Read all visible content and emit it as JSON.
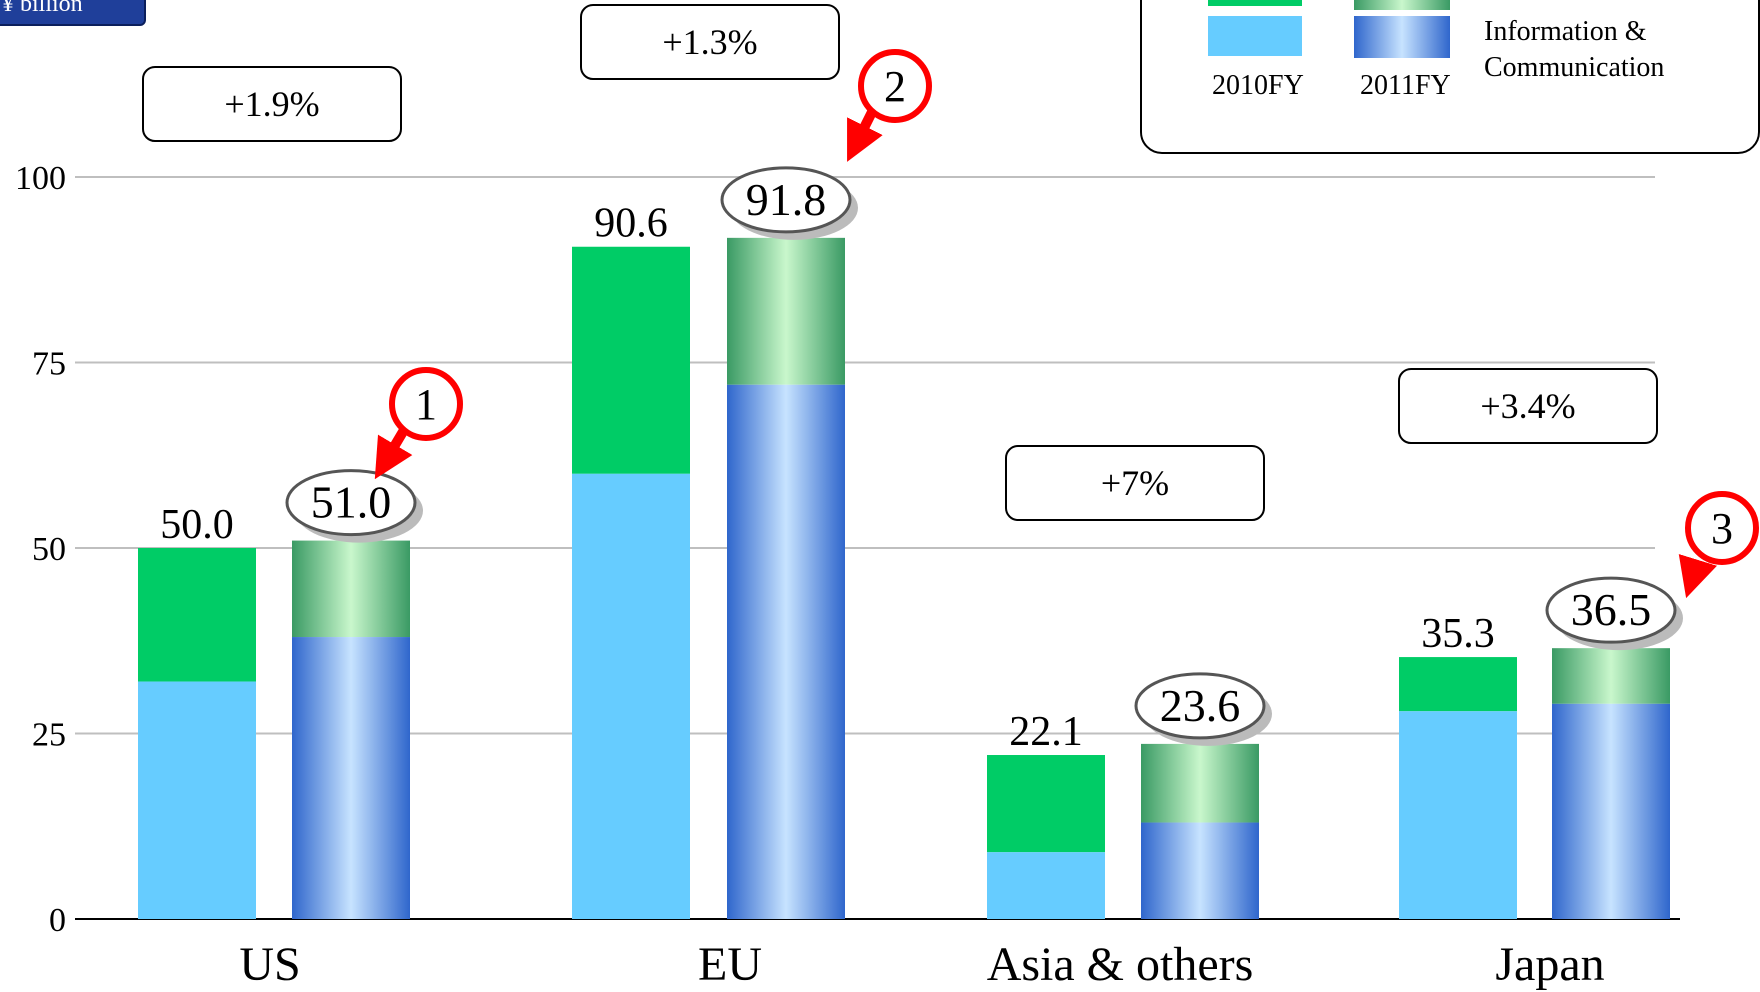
{
  "unit_label": "¥ billion",
  "legend": {
    "series_2010": "2010FY",
    "series_2011": "2011FY",
    "segment_lower": "Information & Communication",
    "segment_lower_line1": "Information &",
    "segment_lower_line2": "Communication"
  },
  "colors": {
    "green_2010": "#00cc66",
    "lightblue_2010": "#66ccff",
    "blue_2011_edge": "#2f66cc",
    "blue_2011_center": "#c7e3ff",
    "green_2011_edge": "#3a9a64",
    "green_2011_center": "#c9f7cc",
    "callout_red": "#ff0000",
    "grid": "#bfbfbf"
  },
  "chart_data": {
    "type": "bar",
    "stacked": true,
    "categories": [
      "US",
      "EU",
      "Asia & others",
      "Japan"
    ],
    "ylim": [
      0,
      100
    ],
    "yticks": [
      0,
      25,
      50,
      75,
      100
    ],
    "grid": true,
    "legend_position": "top-right",
    "series": [
      {
        "name": "2010FY",
        "totals": [
          50.0,
          90.6,
          22.1,
          35.3
        ],
        "total_labels": [
          "50.0",
          "90.6",
          "22.1",
          "35.3"
        ],
        "information_communication": [
          32,
          60,
          9,
          28
        ]
      },
      {
        "name": "2011FY",
        "totals": [
          51.0,
          91.8,
          23.6,
          36.5
        ],
        "total_labels": [
          "51.0",
          "91.8",
          "23.6",
          "36.5"
        ],
        "information_communication": [
          38,
          72,
          13,
          29
        ]
      }
    ],
    "growth_labels": [
      "+1.9%",
      "+1.3%",
      "+7%",
      "+3.4%"
    ],
    "callouts": [
      {
        "number": "1",
        "category": "US"
      },
      {
        "number": "2",
        "category": "EU"
      },
      {
        "number": "3",
        "category": "Japan"
      }
    ]
  }
}
